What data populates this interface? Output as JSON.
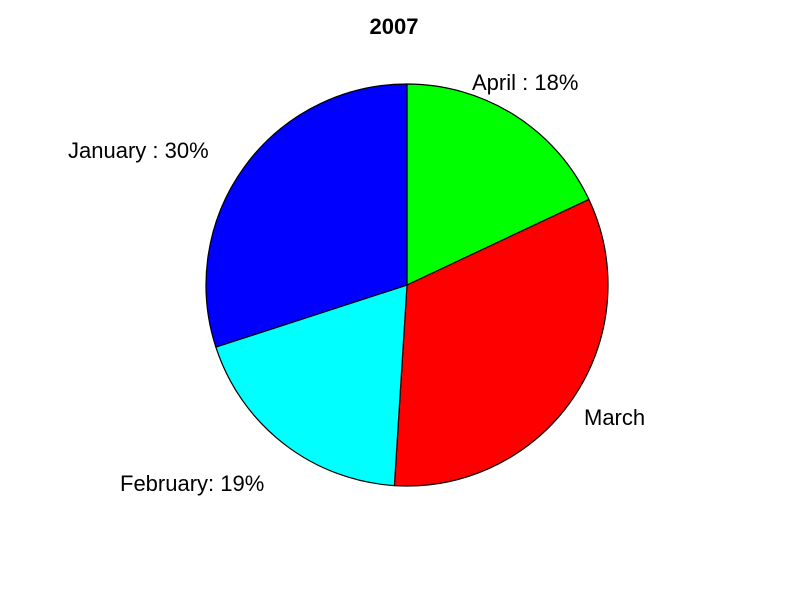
{
  "chart_data": {
    "type": "pie",
    "title": "2007",
    "slices": [
      {
        "name": "April",
        "label": "April : 18%",
        "value": 18,
        "color": "#00ff00"
      },
      {
        "name": "March",
        "label": "March",
        "value": 33,
        "color": "#ff0000"
      },
      {
        "name": "February",
        "label": "February: 19%",
        "value": 19,
        "color": "#00ffff"
      },
      {
        "name": "January",
        "label": "January : 30%",
        "value": 30,
        "color": "#0000ff"
      }
    ],
    "direction": "clockwise",
    "start": "12 o'clock"
  }
}
